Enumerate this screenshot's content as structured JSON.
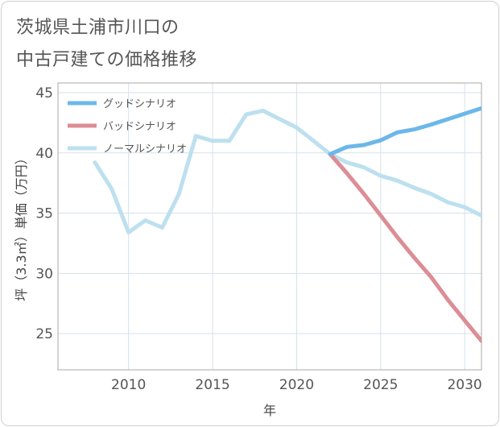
{
  "title": {
    "line1": "茨城県土浦市川口の",
    "line2": "中古戸建ての価格推移"
  },
  "chart_data": {
    "type": "line",
    "xlabel": "年",
    "ylabel": "坪（3.3㎡）単価（万円）",
    "xlim": [
      2005.8,
      2031
    ],
    "ylim": [
      22,
      45.8
    ],
    "x_ticks": [
      2010,
      2015,
      2020,
      2025,
      2030
    ],
    "y_ticks": [
      25,
      30,
      35,
      40,
      45
    ],
    "grid": true,
    "legend_position": "top-left",
    "series": [
      {
        "name": "グッドシナリオ",
        "color": "#6cb7ea",
        "x": [
          2022,
          2023,
          2024,
          2025,
          2026,
          2027,
          2028,
          2029,
          2030,
          2031
        ],
        "values": [
          39.9,
          40.5,
          40.65,
          41.05,
          41.7,
          41.95,
          42.35,
          42.8,
          43.25,
          43.7
        ]
      },
      {
        "name": "バッドシナリオ",
        "color": "#dc8d95",
        "x": [
          2022,
          2023,
          2024,
          2025,
          2026,
          2027,
          2028,
          2029,
          2030,
          2031
        ],
        "values": [
          39.9,
          38.3,
          36.6,
          34.8,
          33.0,
          31.3,
          29.7,
          27.8,
          26.1,
          24.4
        ]
      },
      {
        "name": "ノーマルシナリオ",
        "color": "#bde0ef",
        "x": [
          2008,
          2009,
          2010,
          2011,
          2012,
          2013,
          2014,
          2015,
          2016,
          2017,
          2018,
          2019,
          2020,
          2021,
          2022,
          2023,
          2024,
          2025,
          2026,
          2027,
          2028,
          2029,
          2030,
          2031
        ],
        "values": [
          39.2,
          37.0,
          33.4,
          34.4,
          33.8,
          36.6,
          41.4,
          41.0,
          41.0,
          43.2,
          43.5,
          42.8,
          42.1,
          41.0,
          39.9,
          39.2,
          38.8,
          38.1,
          37.7,
          37.1,
          36.6,
          35.9,
          35.5,
          34.8
        ]
      }
    ]
  }
}
